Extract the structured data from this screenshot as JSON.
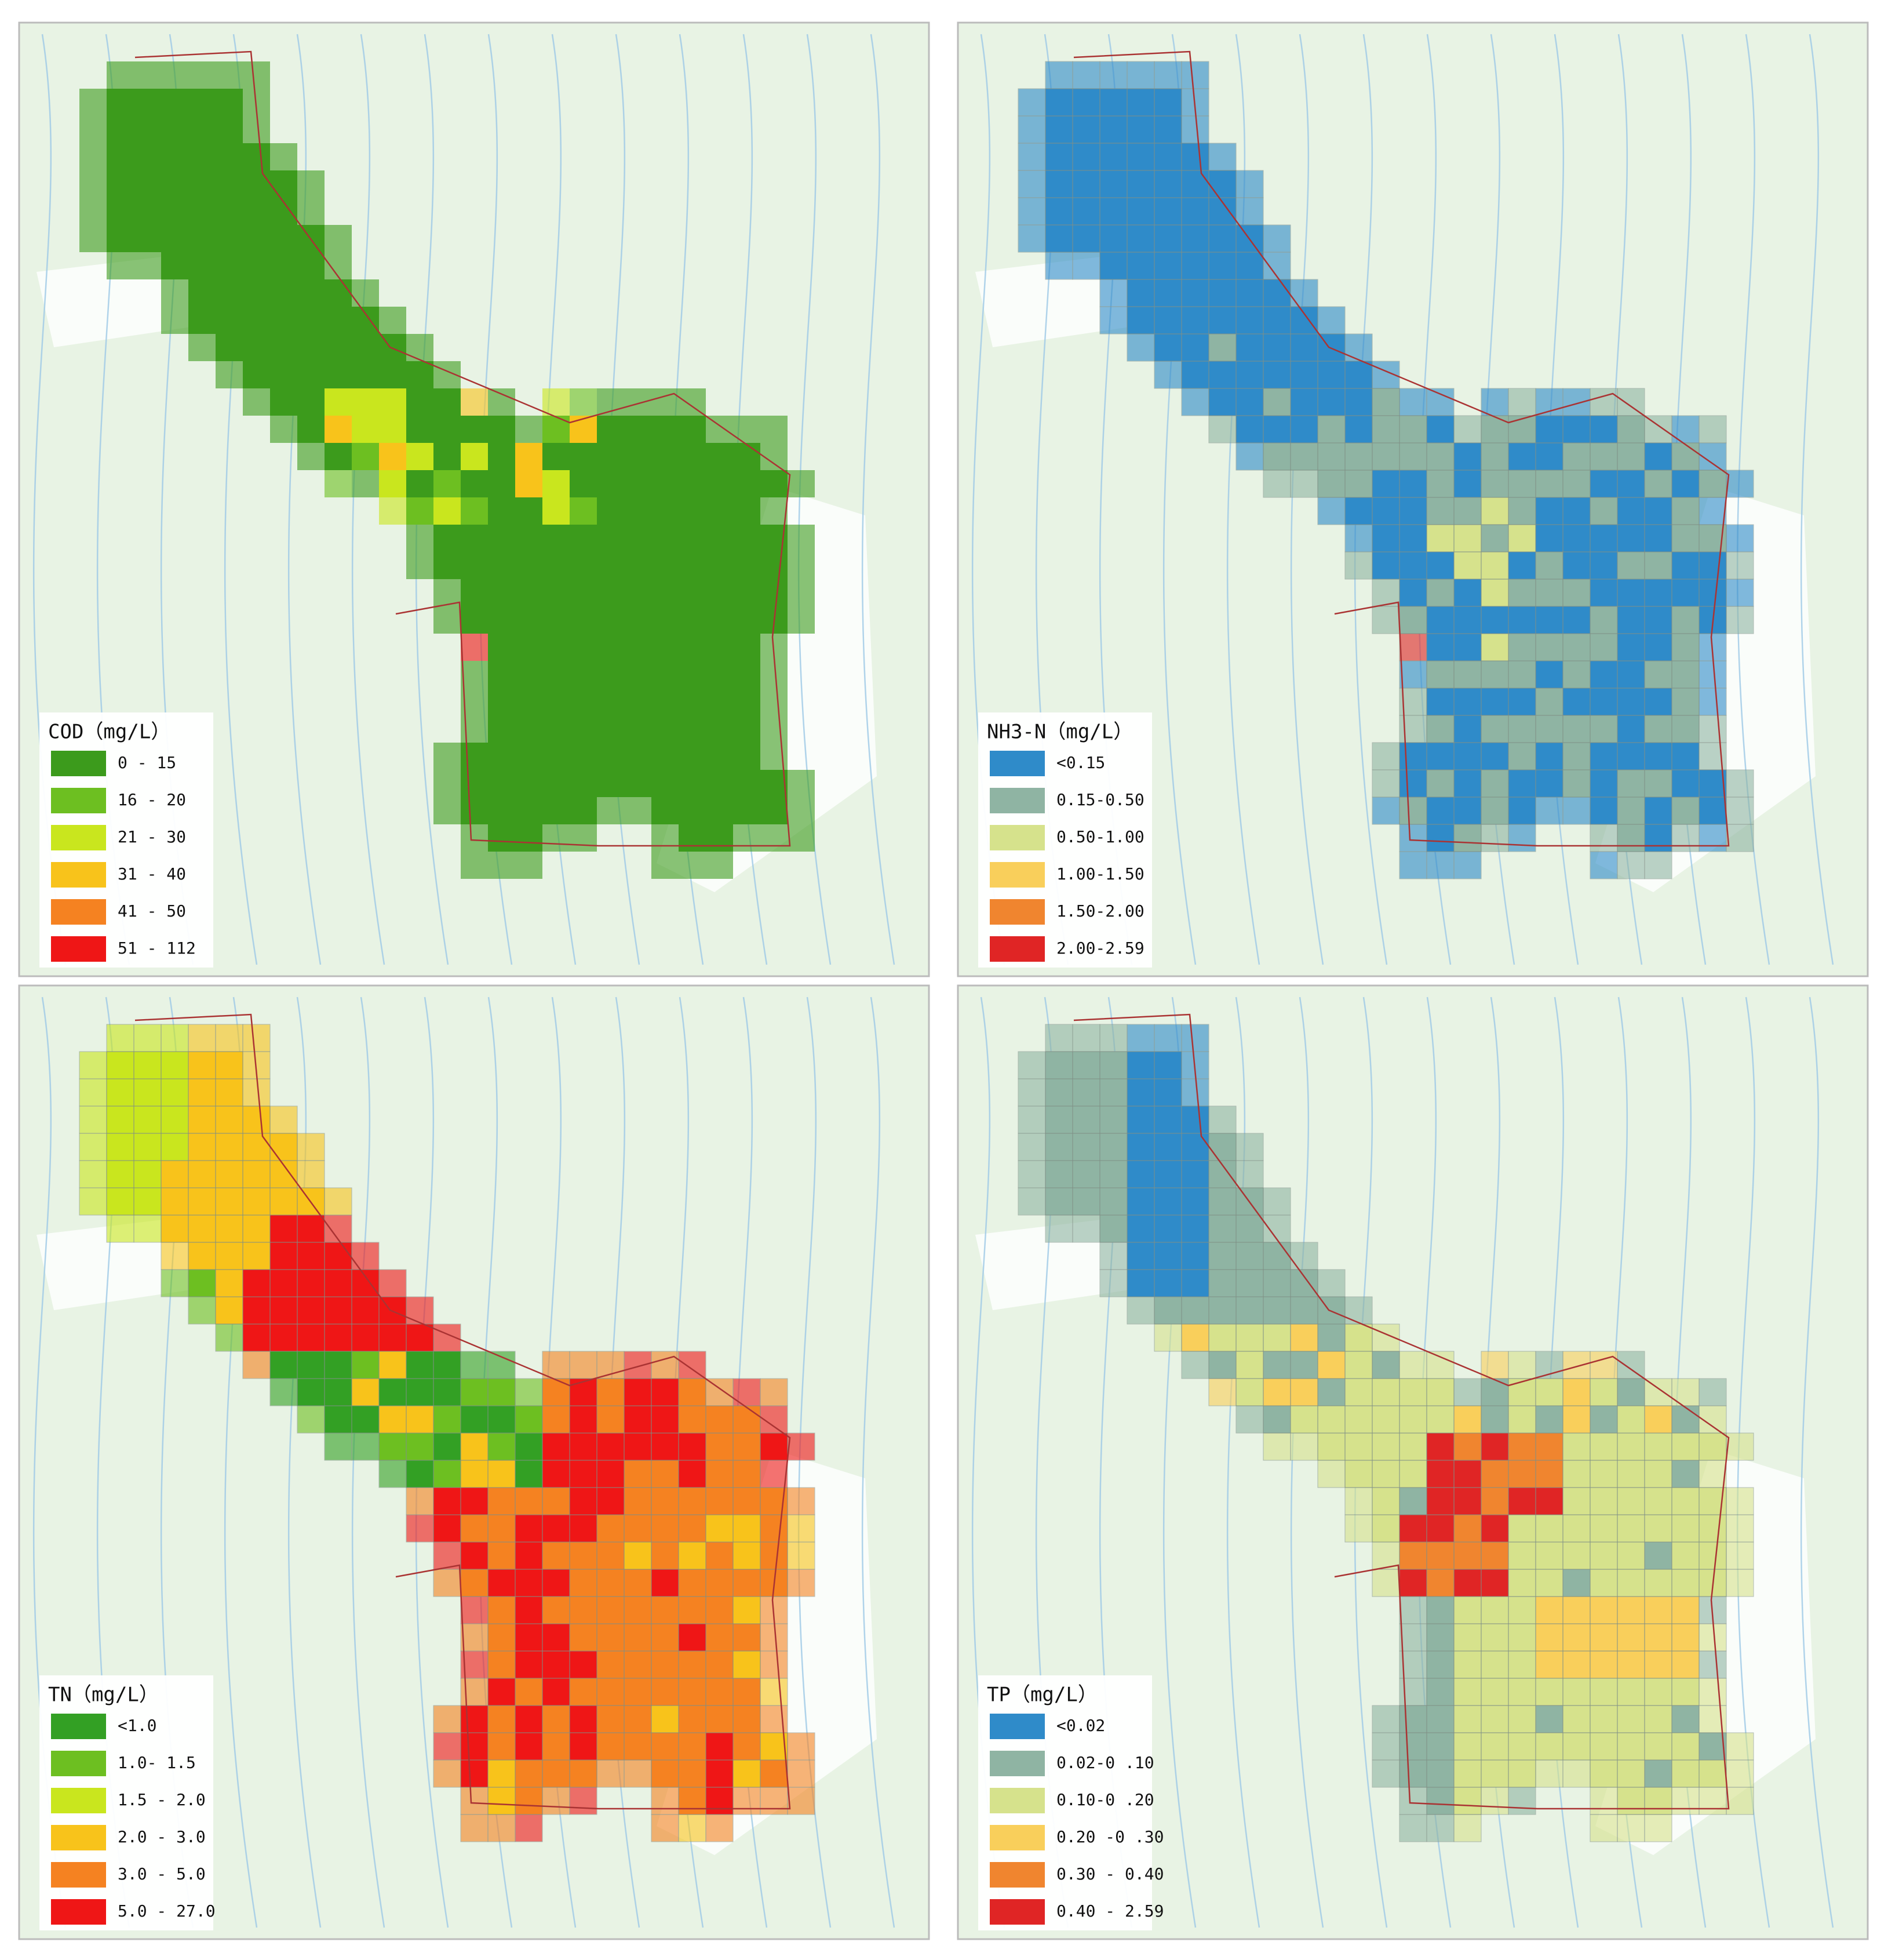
{
  "panels": [
    {
      "title": "COD（mg/L）",
      "legend": [
        {
          "label": "0 - 15",
          "color": "#3c9b1c"
        },
        {
          "label": "16 - 20",
          "color": "#6dbf21"
        },
        {
          "label": "21 - 30",
          "color": "#c9e61e"
        },
        {
          "label": "31 - 40",
          "color": "#f8c31b"
        },
        {
          "label": "41 - 50",
          "color": "#f58221"
        },
        {
          "label": "51 - 112",
          "color": "#ef1616"
        }
      ]
    },
    {
      "title": "NH3-N（mg/L）",
      "legend": [
        {
          "label": "<0.15",
          "color": "#2f8bc9"
        },
        {
          "label": "0.15-0.50",
          "color": "#8fb4a3"
        },
        {
          "label": "0.50-1.00",
          "color": "#d6e28c"
        },
        {
          "label": "1.00-1.50",
          "color": "#f9cf5b"
        },
        {
          "label": "1.50-2.00",
          "color": "#f0852f"
        },
        {
          "label": "2.00-2.59",
          "color": "#e02525"
        }
      ]
    },
    {
      "title": "TN（mg/L）",
      "legend": [
        {
          "label": "<1.0",
          "color": "#33a024"
        },
        {
          "label": "1.0- 1.5",
          "color": "#6dbf21"
        },
        {
          "label": "1.5 - 2.0",
          "color": "#c9e61e"
        },
        {
          "label": "2.0 - 3.0",
          "color": "#f8c31b"
        },
        {
          "label": "3.0 - 5.0",
          "color": "#f58221"
        },
        {
          "label": "5.0 - 27.0",
          "color": "#ef1616"
        }
      ]
    },
    {
      "title": "TP（mg/L）",
      "legend": [
        {
          "label": "<0.02",
          "color": "#2f8bc9"
        },
        {
          "label": "0.02-0 .10",
          "color": "#8fb4a3"
        },
        {
          "label": "0.10-0 .20",
          "color": "#d6e28c"
        },
        {
          "label": "0.20 -0 .30",
          "color": "#f9cf5b"
        },
        {
          "label": "0.30 - 0.40",
          "color": "#f0852f"
        },
        {
          "label": "0.40 - 2.59",
          "color": "#e02525"
        }
      ]
    }
  ]
}
